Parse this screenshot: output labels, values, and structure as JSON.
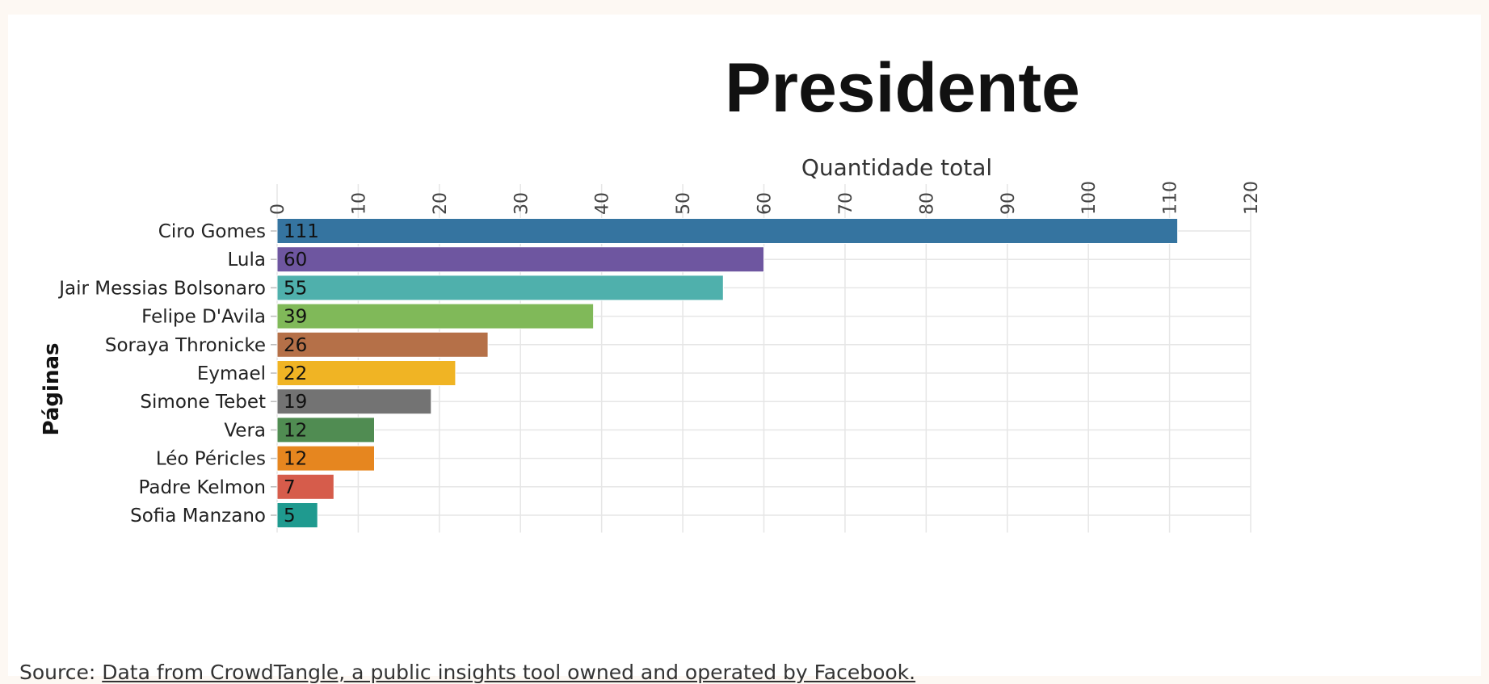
{
  "chart_data": {
    "type": "bar",
    "orientation": "horizontal",
    "title": "Presidente",
    "xlabel": "Quantidade total",
    "ylabel": "Páginas",
    "xlim": [
      0,
      120
    ],
    "xticks": [
      0,
      10,
      20,
      30,
      40,
      50,
      60,
      70,
      80,
      90,
      100,
      110,
      120
    ],
    "x_axis_position": "top",
    "grid": true,
    "legend": "none",
    "categories": [
      "Ciro Gomes",
      "Lula",
      "Jair Messias Bolsonaro",
      "Felipe D'Avila",
      "Soraya Thronicke",
      "Eymael",
      "Simone Tebet",
      "Vera",
      "Léo Péricles",
      "Padre Kelmon",
      "Sofia Manzano"
    ],
    "values": [
      111,
      60,
      55,
      39,
      26,
      22,
      19,
      12,
      12,
      7,
      5
    ],
    "colors": [
      "#3574a0",
      "#6e56a0",
      "#4fb0ac",
      "#80b959",
      "#b57048",
      "#f0b424",
      "#737373",
      "#508c52",
      "#e6861f",
      "#d65c4b",
      "#1f9a8f"
    ]
  },
  "source": {
    "prefix": "Source: ",
    "link_text": "Data from CrowdTangle, a public insights tool owned and operated by Facebook."
  }
}
